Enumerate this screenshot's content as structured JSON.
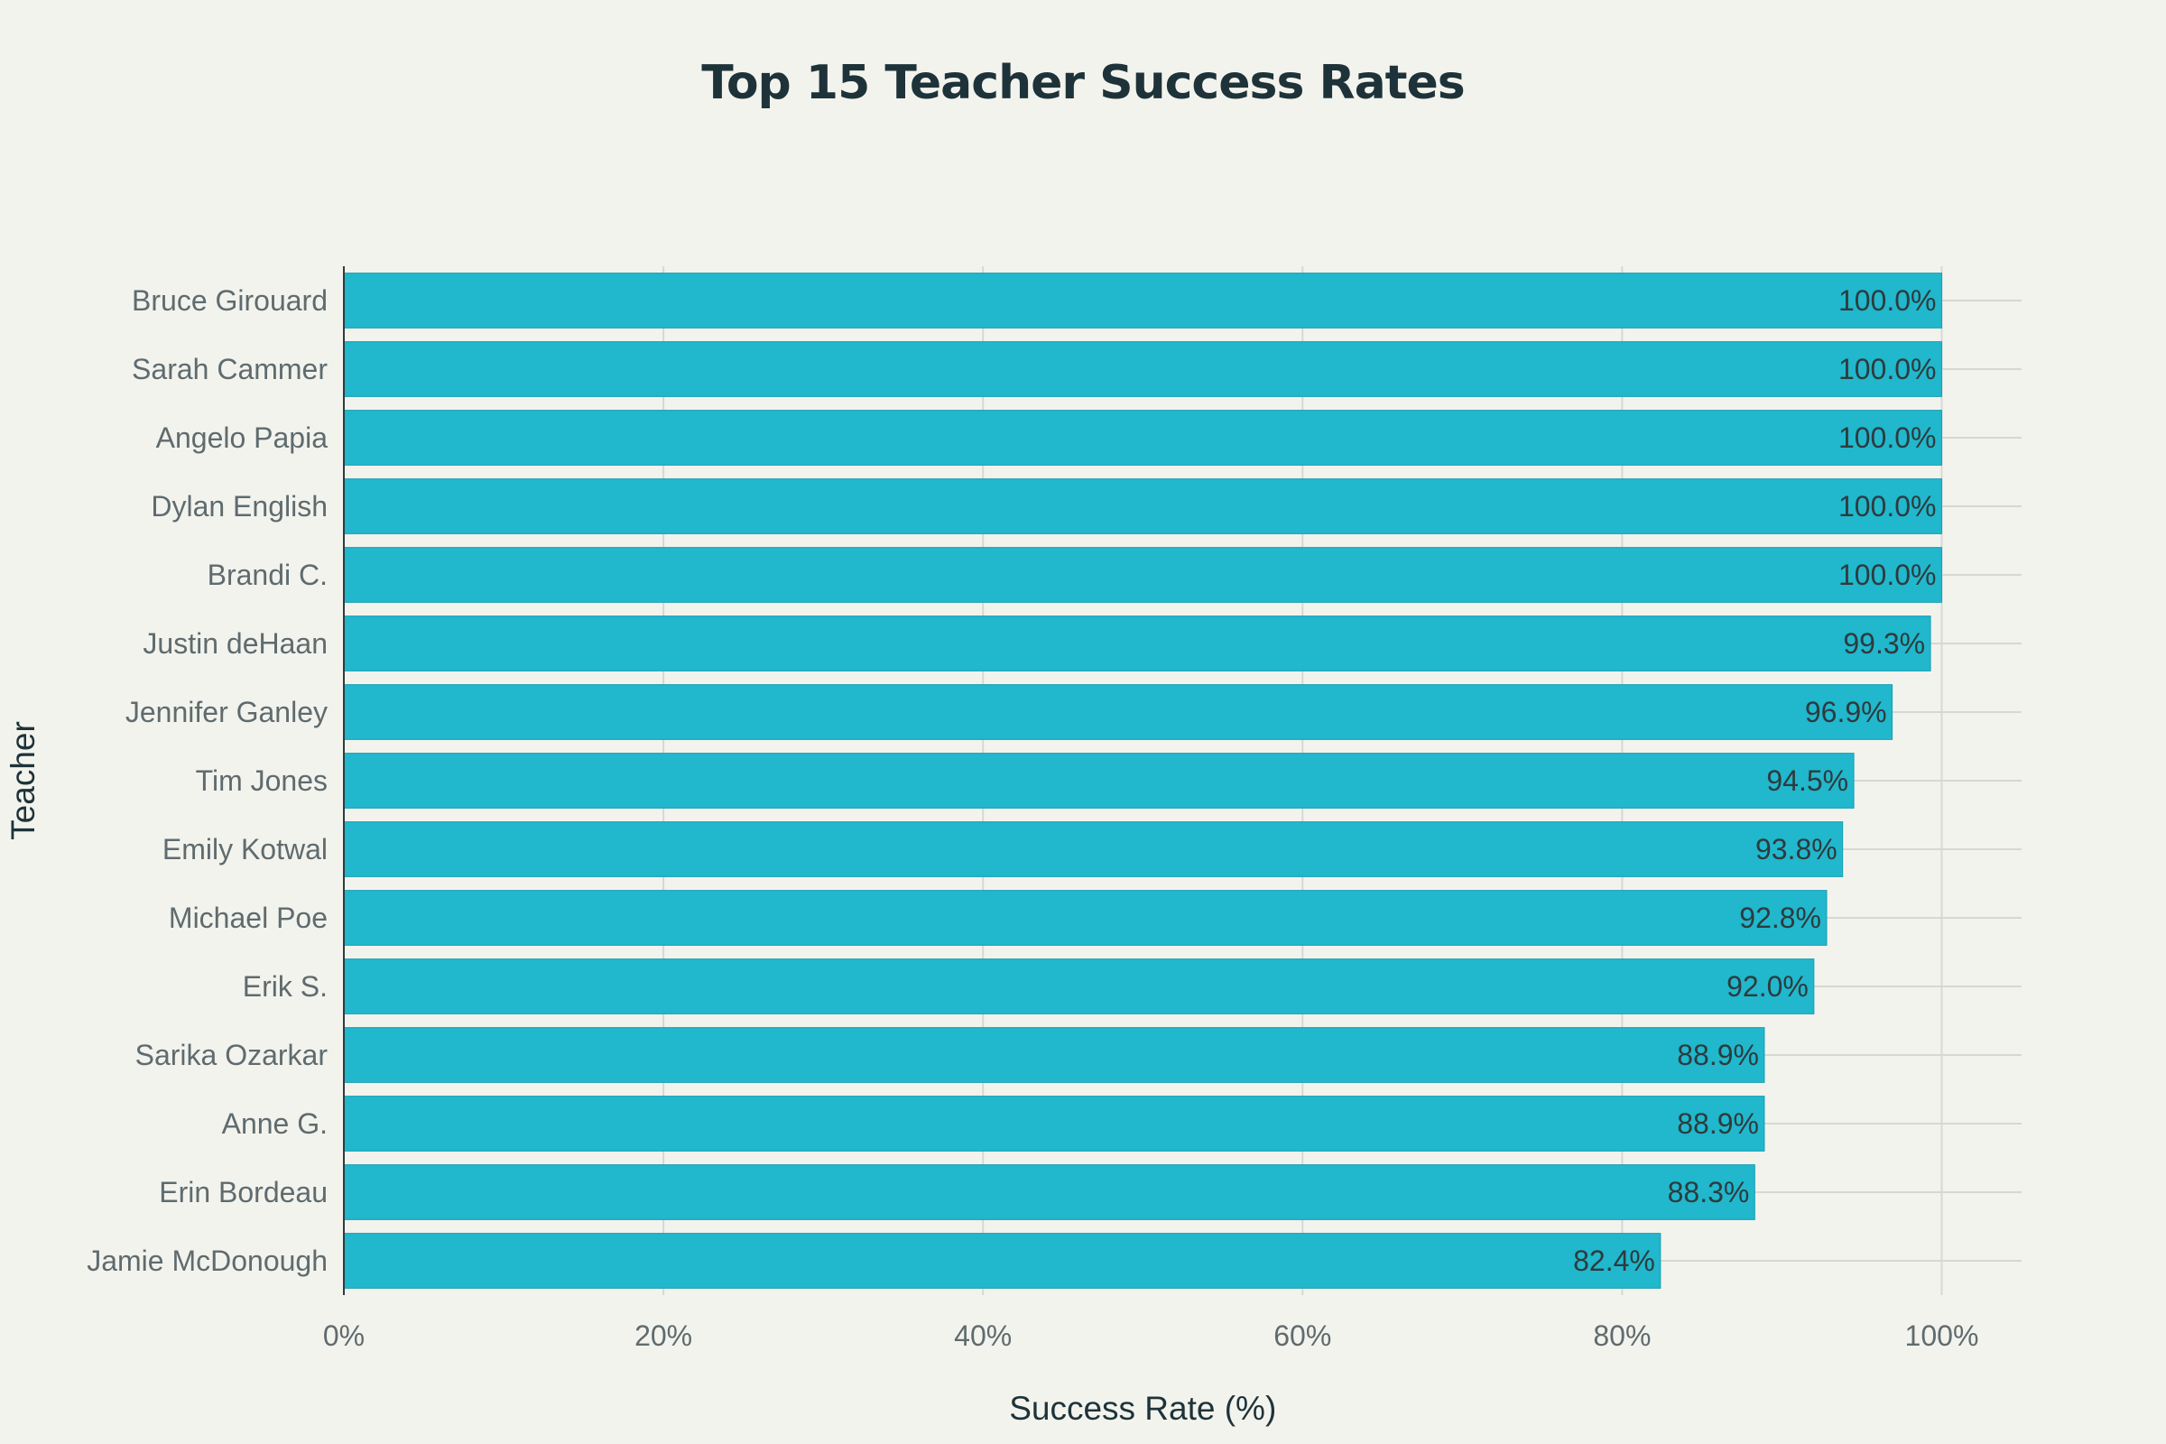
{
  "chart_data": {
    "type": "bar",
    "orientation": "horizontal",
    "title": "Top 15 Teacher Success Rates",
    "xlabel": "Success Rate (%)",
    "ylabel": "Teacher",
    "xlim": [
      0,
      105
    ],
    "x_ticks": [
      {
        "value": 0,
        "label": "0%"
      },
      {
        "value": 20,
        "label": "20%"
      },
      {
        "value": 40,
        "label": "40%"
      },
      {
        "value": 60,
        "label": "60%"
      },
      {
        "value": 80,
        "label": "80%"
      },
      {
        "value": 100,
        "label": "100%"
      }
    ],
    "grid": true,
    "bar_color": "#21b7cc",
    "categories": [
      "Bruce Girouard",
      "Sarah Cammer",
      "Angelo Papia",
      "Dylan English",
      "Brandi C.",
      "Justin deHaan",
      "Jennifer Ganley",
      "Tim Jones",
      "Emily Kotwal",
      "Michael Poe",
      "Erik S.",
      "Sarika Ozarkar",
      "Anne G.",
      "Erin Bordeau",
      "Jamie McDonough"
    ],
    "values": [
      100.0,
      100.0,
      100.0,
      100.0,
      100.0,
      99.3,
      96.9,
      94.5,
      93.8,
      92.8,
      92.0,
      88.9,
      88.9,
      88.3,
      82.4
    ],
    "value_labels": [
      "100.0%",
      "100.0%",
      "100.0%",
      "100.0%",
      "100.0%",
      "99.3%",
      "96.9%",
      "94.5%",
      "93.8%",
      "92.8%",
      "92.0%",
      "88.9%",
      "88.9%",
      "88.3%",
      "82.4%"
    ]
  }
}
